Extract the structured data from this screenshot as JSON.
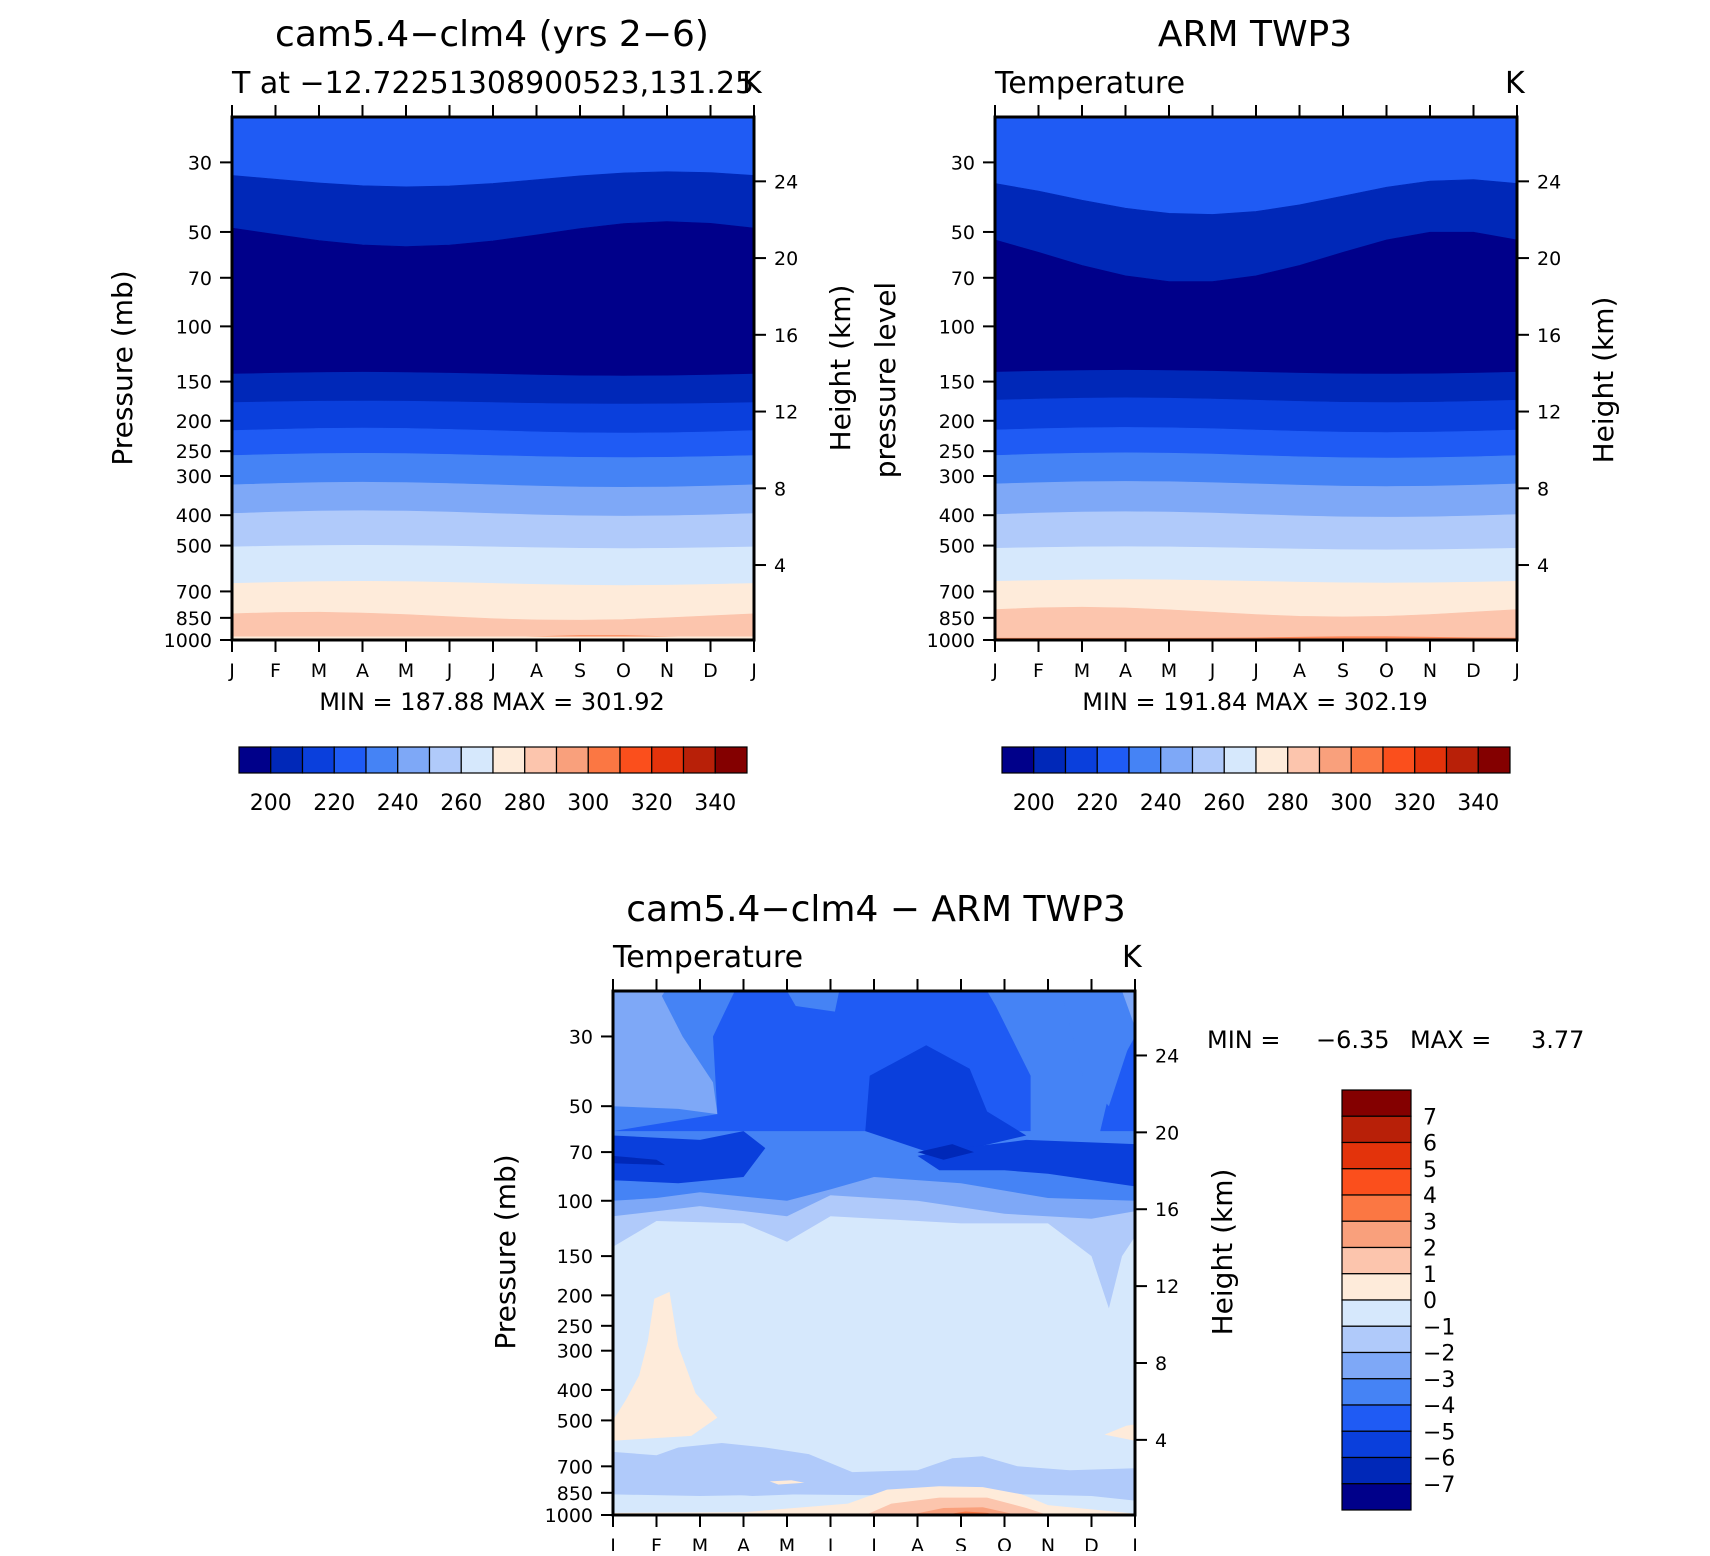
{
  "palette": [
    "#00008a",
    "#0028b8",
    "#0a3fdc",
    "#1f5bf4",
    "#4583f5",
    "#7ea8f7",
    "#b0cafa",
    "#d6e8fc",
    "#feebda",
    "#fcc5ad",
    "#f9a07c",
    "#fb7743",
    "#fb4f1c",
    "#e3330b",
    "#b82008",
    "#840000"
  ],
  "month_labels": [
    "J",
    "F",
    "M",
    "A",
    "M",
    "J",
    "J",
    "A",
    "S",
    "O",
    "N",
    "D",
    "J"
  ],
  "pressure_ticks": [
    "30",
    "50",
    "70",
    "100",
    "150",
    "200",
    "250",
    "300",
    "400",
    "500",
    "700",
    "850",
    "1000"
  ],
  "height_ticks": [
    "4",
    "8",
    "12",
    "16",
    "20",
    "24"
  ],
  "chart_data": [
    {
      "type": "heatmap",
      "title": "cam5.4−clm4 (yrs 2−6)",
      "subtitle": "T at −12.72251308900523,131.25",
      "units": "K",
      "xlabel": "",
      "ylabel": "Pressure (mb)",
      "y2label": "Height (km)",
      "min_max_text": "MIN = 187.88 MAX = 301.92",
      "min": 187.88,
      "max": 301.92,
      "colorbar_labels": [
        "200",
        "220",
        "240",
        "260",
        "280",
        "300",
        "320",
        "340"
      ],
      "contour_levels": [
        195,
        200,
        205,
        210,
        215,
        220,
        225,
        230,
        235,
        240,
        245,
        250,
        255,
        260,
        265,
        270,
        275,
        280,
        285,
        290,
        295,
        300,
        305,
        310,
        315,
        320,
        325,
        330,
        335,
        340
      ]
    },
    {
      "type": "heatmap",
      "title": "ARM TWP3",
      "subtitle": "Temperature",
      "units": "K",
      "xlabel": "",
      "ylabel": "pressure level",
      "y2label": "Height (km)",
      "min_max_text": "MIN = 191.84 MAX = 302.19",
      "min": 191.84,
      "max": 302.19,
      "colorbar_labels": [
        "200",
        "220",
        "240",
        "260",
        "280",
        "300",
        "320",
        "340"
      ]
    },
    {
      "type": "heatmap",
      "title": "cam5.4−clm4 − ARM TWP3",
      "subtitle": "Temperature",
      "units": "K",
      "xlabel": "",
      "ylabel": "Pressure (mb)",
      "y2label": "Height (km)",
      "min_label": "MIN =",
      "min_value": "−6.35",
      "max_label": "MAX =",
      "max_value": "3.77",
      "min": -6.35,
      "max": 3.77,
      "colorbar_labels": [
        "7",
        "6",
        "5",
        "4",
        "3",
        "2",
        "1",
        "0",
        "−1",
        "−2",
        "−3",
        "−4",
        "−5",
        "−6",
        "−7"
      ]
    }
  ]
}
